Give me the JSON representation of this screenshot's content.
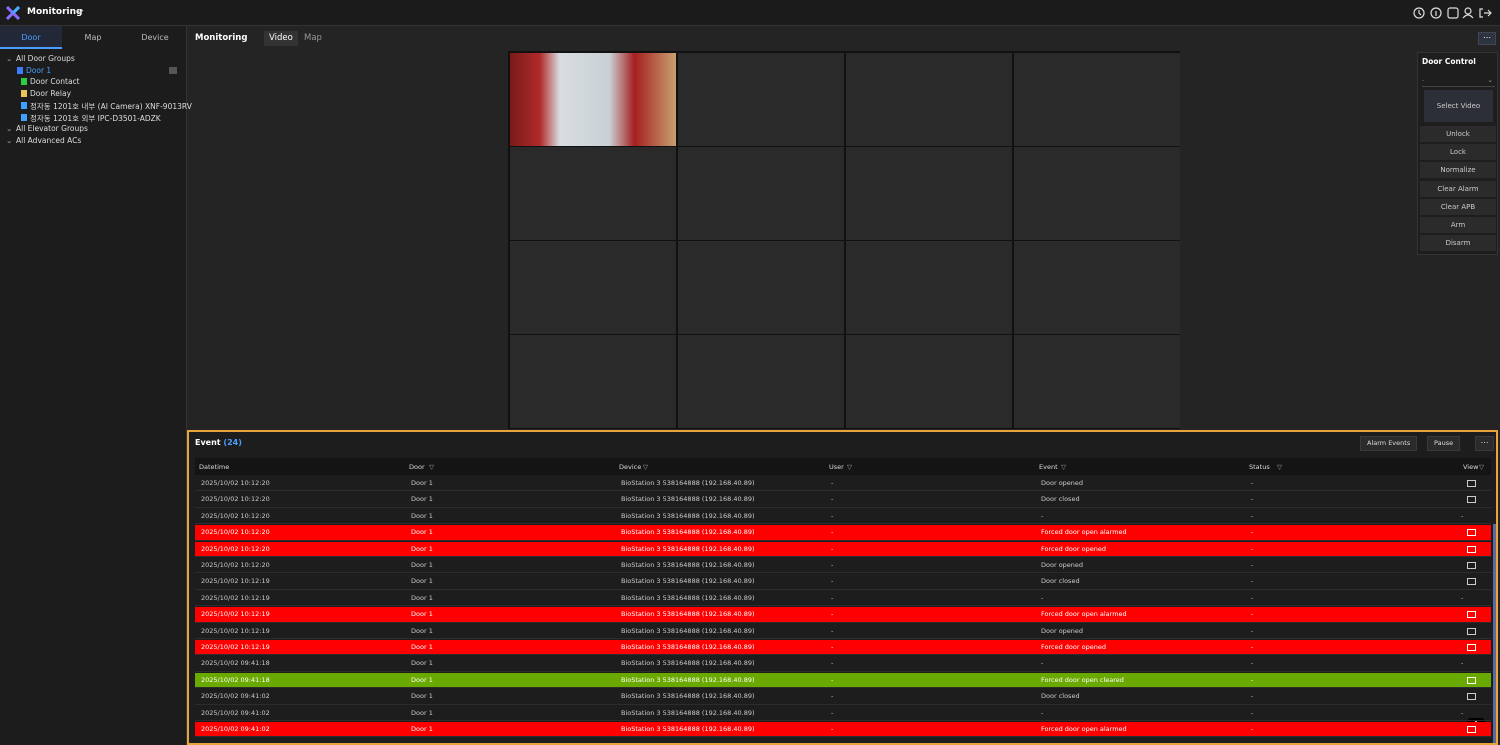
{
  "header": {
    "title": "Monitoring"
  },
  "sidebar": {
    "tabs": [
      "Door",
      "Map",
      "Device"
    ],
    "tree": [
      {
        "label": "All Door Groups",
        "children": [
          {
            "label": "Door 1",
            "children": [
              {
                "label": "Door Contact"
              },
              {
                "label": "Door Relay"
              },
              {
                "label": "정자동 1201호 내부 (AI Camera) XNF-9013RV"
              },
              {
                "label": "정자동 1201호 외부 IPC-D3501-ADZK"
              }
            ]
          }
        ]
      },
      {
        "label": "All Elevator Groups"
      },
      {
        "label": "All Advanced ACs"
      }
    ]
  },
  "main": {
    "title": "Monitoring",
    "tabs": [
      "Video",
      "Map"
    ]
  },
  "door_control": {
    "title": "Door Control",
    "select": "-",
    "select_video": "Select Video",
    "buttons": [
      "Unlock",
      "Lock",
      "Normalize",
      "Clear Alarm",
      "Clear APB",
      "Arm",
      "Disarm"
    ]
  },
  "events": {
    "title": "Event",
    "count": "(24)",
    "buttons": [
      "Alarm Events",
      "Pause"
    ],
    "columns": [
      "Datetime",
      "Door",
      "Device",
      "User",
      "Event",
      "Status",
      "View"
    ],
    "rows": [
      {
        "color": null,
        "cells": [
          "2025/10/02 10:12:20",
          "Door 1",
          "BioStation 3 538164888 (192.168.40.89)",
          "-",
          "Door opened",
          "-",
          null
        ]
      },
      {
        "color": null,
        "cells": [
          "2025/10/02 10:12:20",
          "Door 1",
          "BioStation 3 538164888 (192.168.40.89)",
          "-",
          "Door closed",
          "-",
          null
        ]
      },
      {
        "color": null,
        "cells": [
          "2025/10/02 10:12:20",
          "Door 1",
          "BioStation 3 538164888 (192.168.40.89)",
          "-",
          "-",
          "-",
          "-"
        ]
      },
      {
        "color": "#ff0000",
        "cells": [
          "2025/10/02 10:12:20",
          "Door 1",
          "BioStation 3 538164888 (192.168.40.89)",
          "-",
          "Forced door open alarmed",
          "-",
          null
        ]
      },
      {
        "color": "#ff0000",
        "cells": [
          "2025/10/02 10:12:20",
          "Door 1",
          "BioStation 3 538164888 (192.168.40.89)",
          "-",
          "Forced door opened",
          "-",
          null
        ]
      },
      {
        "color": null,
        "cells": [
          "2025/10/02 10:12:20",
          "Door 1",
          "BioStation 3 538164888 (192.168.40.89)",
          "-",
          "Door opened",
          "-",
          null
        ]
      },
      {
        "color": null,
        "cells": [
          "2025/10/02 10:12:19",
          "Door 1",
          "BioStation 3 538164888 (192.168.40.89)",
          "-",
          "Door closed",
          "-",
          null
        ]
      },
      {
        "color": null,
        "cells": [
          "2025/10/02 10:12:19",
          "Door 1",
          "BioStation 3 538164888 (192.168.40.89)",
          "-",
          "-",
          "-",
          "-"
        ]
      },
      {
        "color": "#ff0000",
        "cells": [
          "2025/10/02 10:12:19",
          "Door 1",
          "BioStation 3 538164888 (192.168.40.89)",
          "-",
          "Forced door open alarmed",
          "-",
          null
        ]
      },
      {
        "color": null,
        "cells": [
          "2025/10/02 10:12:19",
          "Door 1",
          "BioStation 3 538164888 (192.168.40.89)",
          "-",
          "Door opened",
          "-",
          null
        ]
      },
      {
        "color": "#ff0000",
        "cells": [
          "2025/10/02 10:12:19",
          "Door 1",
          "BioStation 3 538164888 (192.168.40.89)",
          "-",
          "Forced door opened",
          "-",
          null
        ]
      },
      {
        "color": null,
        "cells": [
          "2025/10/02 09:41:18",
          "Door 1",
          "BioStation 3 538164888 (192.168.40.89)",
          "-",
          "-",
          "-",
          "-"
        ]
      },
      {
        "color": "#6aaa00",
        "cells": [
          "2025/10/02 09:41:18",
          "Door 1",
          "BioStation 3 538164888 (192.168.40.89)",
          "-",
          "Forced door open cleared",
          "-",
          null
        ]
      },
      {
        "color": null,
        "cells": [
          "2025/10/02 09:41:02",
          "Door 1",
          "BioStation 3 538164888 (192.168.40.89)",
          "-",
          "Door closed",
          "-",
          null
        ]
      },
      {
        "color": null,
        "cells": [
          "2025/10/02 09:41:02",
          "Door 1",
          "BioStation 3 538164888 (192.168.40.89)",
          "-",
          "-",
          "-",
          "-"
        ]
      },
      {
        "color": "#ff0000",
        "cells": [
          "2025/10/02 09:41:02",
          "Door 1",
          "BioStation 3 538164888 (192.168.40.89)",
          "-",
          "Forced door open alarmed",
          "-",
          null
        ]
      }
    ]
  }
}
